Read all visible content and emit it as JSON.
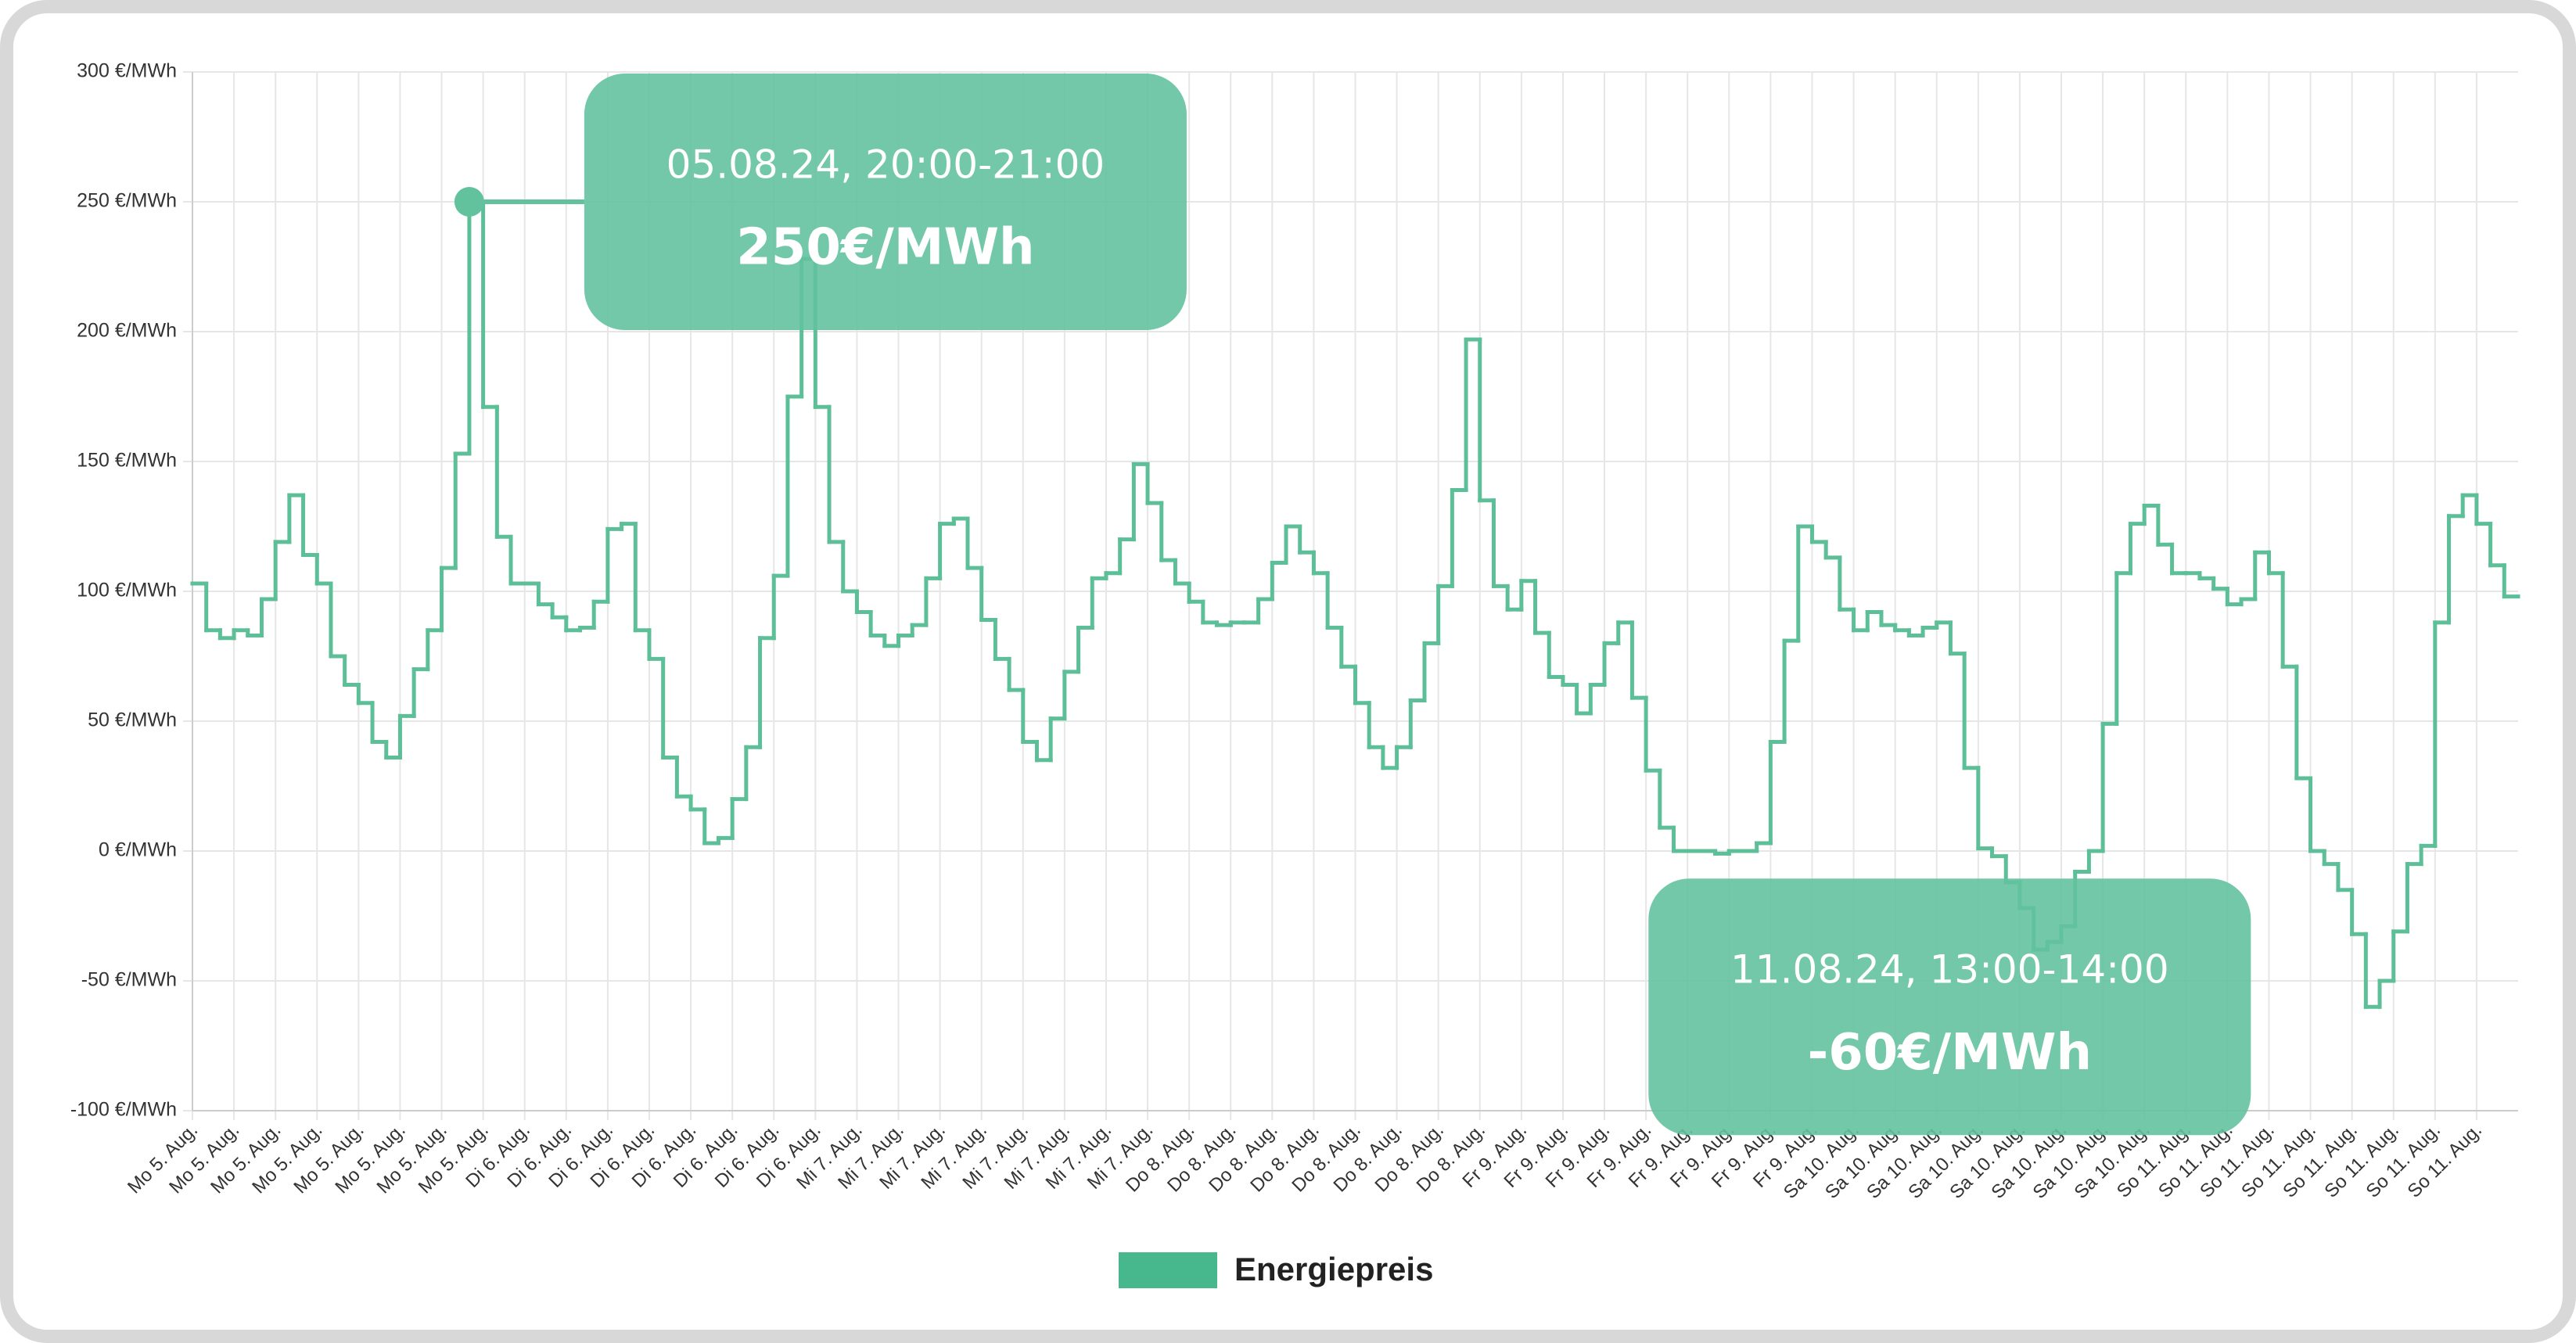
{
  "chart_data": {
    "type": "step",
    "categories": [
      "Mo 5. Aug.",
      null,
      null,
      "Mo 5. Aug.",
      null,
      null,
      "Mo 5. Aug.",
      null,
      null,
      "Mo 5. Aug.",
      null,
      null,
      "Mo 5. Aug.",
      null,
      null,
      "Mo 5. Aug.",
      null,
      null,
      "Mo 5. Aug.",
      null,
      null,
      "Mo 5. Aug.",
      null,
      null,
      "Di 6. Aug.",
      null,
      null,
      "Di 6. Aug.",
      null,
      null,
      "Di 6. Aug.",
      null,
      null,
      "Di 6. Aug.",
      null,
      null,
      "Di 6. Aug.",
      null,
      null,
      "Di 6. Aug.",
      null,
      null,
      "Di 6. Aug.",
      null,
      null,
      "Di 6. Aug.",
      null,
      null,
      "Mi 7. Aug.",
      null,
      null,
      "Mi 7. Aug.",
      null,
      null,
      "Mi 7. Aug.",
      null,
      null,
      "Mi 7. Aug.",
      null,
      null,
      "Mi 7. Aug.",
      null,
      null,
      "Mi 7. Aug.",
      null,
      null,
      "Mi 7. Aug.",
      null,
      null,
      "Mi 7. Aug.",
      null,
      null,
      "Do 8. Aug.",
      null,
      null,
      "Do 8. Aug.",
      null,
      null,
      "Do 8. Aug.",
      null,
      null,
      "Do 8. Aug.",
      null,
      null,
      "Do 8. Aug.",
      null,
      null,
      "Do 8. Aug.",
      null,
      null,
      "Do 8. Aug.",
      null,
      null,
      "Do 8. Aug.",
      null,
      null,
      "Fr 9. Aug.",
      null,
      null,
      "Fr 9. Aug.",
      null,
      null,
      "Fr 9. Aug.",
      null,
      null,
      "Fr 9. Aug.",
      null,
      null,
      "Fr 9. Aug.",
      null,
      null,
      "Fr 9. Aug.",
      null,
      null,
      "Fr 9. Aug.",
      null,
      null,
      "Fr 9. Aug.",
      null,
      null,
      "Sa 10. Aug.",
      null,
      null,
      "Sa 10. Aug.",
      null,
      null,
      "Sa 10. Aug.",
      null,
      null,
      "Sa 10. Aug.",
      null,
      null,
      "Sa 10. Aug.",
      null,
      null,
      "Sa 10. Aug.",
      null,
      null,
      "Sa 10. Aug.",
      null,
      null,
      "Sa 10. Aug.",
      null,
      null,
      "So 11. Aug.",
      null,
      null,
      "So 11. Aug.",
      null,
      null,
      "So 11. Aug.",
      null,
      null,
      "So 11. Aug.",
      null,
      null,
      "So 11. Aug.",
      null,
      null,
      "So 11. Aug.",
      null,
      null,
      "So 11. Aug.",
      null,
      null,
      "So 11. Aug.",
      null,
      null
    ],
    "series": [
      {
        "name": "Energiepreis",
        "color": "#5dbf98",
        "legend_color": "#47b88e",
        "values": [
          103,
          85,
          82,
          85,
          83,
          97,
          119,
          137,
          114,
          103,
          75,
          64,
          57,
          42,
          36,
          52,
          70,
          85,
          109,
          153,
          250,
          171,
          121,
          103,
          103,
          95,
          90,
          85,
          86,
          96,
          124,
          126,
          85,
          74,
          36,
          21,
          16,
          3,
          5,
          20,
          40,
          82,
          106,
          175,
          228,
          171,
          119,
          100,
          92,
          83,
          79,
          83,
          87,
          105,
          126,
          128,
          109,
          89,
          74,
          62,
          42,
          35,
          51,
          69,
          86,
          105,
          107,
          120,
          149,
          134,
          112,
          103,
          96,
          88,
          87,
          88,
          88,
          97,
          111,
          125,
          115,
          107,
          86,
          71,
          57,
          40,
          32,
          40,
          58,
          80,
          102,
          139,
          197,
          135,
          102,
          93,
          104,
          84,
          67,
          64,
          53,
          64,
          80,
          88,
          59,
          31,
          9,
          0,
          0,
          0,
          -1,
          0,
          0,
          3,
          42,
          81,
          125,
          119,
          113,
          93,
          85,
          92,
          87,
          85,
          83,
          86,
          88,
          76,
          32,
          1,
          -2,
          -12,
          -22,
          -38,
          -35,
          -29,
          -8,
          0,
          49,
          107,
          126,
          133,
          118,
          107,
          107,
          105,
          101,
          95,
          97,
          115,
          107,
          71,
          28,
          0,
          -5,
          -15,
          -32,
          -60,
          -50,
          -31,
          -5,
          2,
          88,
          129,
          137,
          126,
          110,
          98
        ]
      }
    ],
    "ylim": [
      -100,
      300
    ],
    "yticks": [
      {
        "value": -100,
        "label": "-100 €/MWh"
      },
      {
        "value": -50,
        "label": "-50 €/MWh"
      },
      {
        "value": 0,
        "label": "0 €/MWh"
      },
      {
        "value": 50,
        "label": "50 €/MWh"
      },
      {
        "value": 100,
        "label": "100 €/MWh"
      },
      {
        "value": 150,
        "label": "150 €/MWh"
      },
      {
        "value": 200,
        "label": "200 €/MWh"
      },
      {
        "value": 250,
        "label": "250 €/MWh"
      },
      {
        "value": 300,
        "label": "300 €/MWh"
      }
    ],
    "grid": true,
    "annotations": [
      {
        "label": "05.08.24, 20:00-21:00",
        "value_label": "250€/MWh"
      },
      {
        "label": "11.08.24, 13:00-14:00",
        "value_label": "-60€/MWh"
      }
    ],
    "tooltip_color": "#63c29e"
  }
}
